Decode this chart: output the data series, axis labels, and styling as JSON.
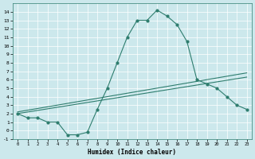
{
  "xlabel": "Humidex (Indice chaleur)",
  "bg_color": "#cce8ec",
  "line_color": "#2e7d6e",
  "grid_color": "#ffffff",
  "xlim": [
    -0.5,
    23.5
  ],
  "ylim": [
    -1,
    15
  ],
  "xticks": [
    0,
    1,
    2,
    3,
    4,
    5,
    6,
    7,
    8,
    9,
    10,
    11,
    12,
    13,
    14,
    15,
    16,
    17,
    18,
    19,
    20,
    21,
    22,
    23
  ],
  "yticks": [
    -1,
    0,
    1,
    2,
    3,
    4,
    5,
    6,
    7,
    8,
    9,
    10,
    11,
    12,
    13,
    14
  ],
  "series1_x": [
    0,
    1,
    2,
    3,
    4,
    5,
    6,
    7,
    8,
    9,
    10,
    11,
    12,
    13,
    14,
    15,
    16,
    17,
    18,
    19,
    20,
    21,
    22,
    23
  ],
  "series1_y": [
    2,
    1.5,
    1.5,
    1,
    1,
    -0.5,
    -0.5,
    -0.2,
    2.5,
    5,
    8,
    11,
    13,
    13,
    14.2,
    13.5,
    12.5,
    10.5,
    6,
    5.5,
    5,
    4,
    3,
    2.5
  ],
  "series2_x": [
    0,
    23
  ],
  "series2_y": [
    2.2,
    6.8
  ],
  "series3_x": [
    0,
    23
  ],
  "series3_y": [
    2.0,
    6.3
  ]
}
